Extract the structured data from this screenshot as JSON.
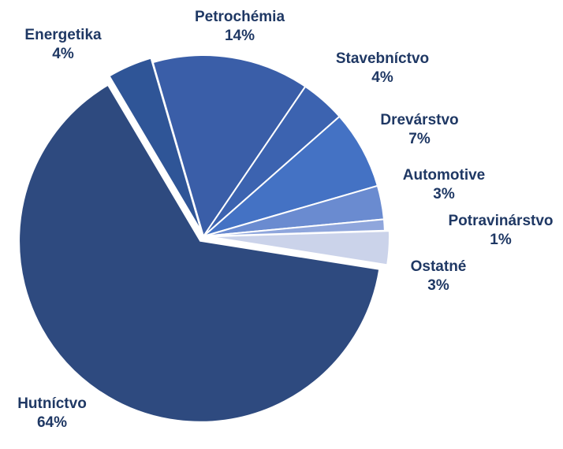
{
  "chart_data": {
    "type": "pie",
    "categories": [
      "Hutníctvo",
      "Energetika",
      "Petrochémia",
      "Stavebníctvo",
      "Drevárstvo",
      "Automotive",
      "Potravinárstvo",
      "Ostatné"
    ],
    "values": [
      64,
      4,
      14,
      4,
      7,
      3,
      1,
      3
    ],
    "value_labels": [
      "64%",
      "4%",
      "14%",
      "4%",
      "7%",
      "3%",
      "1%",
      "3%"
    ],
    "colors": [
      "#2e4a7f",
      "#2f5597",
      "#3a5ea8",
      "#3c63b0",
      "#4472c4",
      "#6a8bd0",
      "#8fa6dc",
      "#cbd3ea"
    ]
  }
}
